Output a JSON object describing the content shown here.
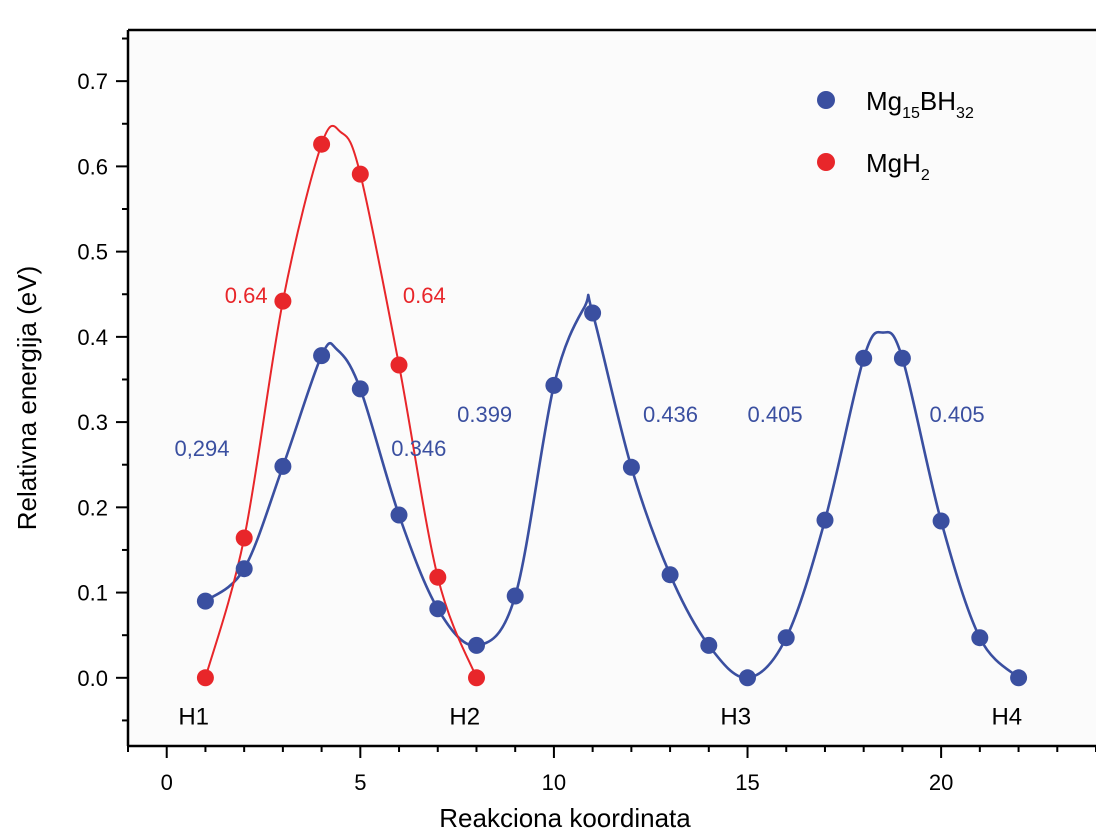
{
  "chart_data": {
    "type": "scatter",
    "xlabel": "Reakciona koordinata",
    "ylabel": "Relativna energija (eV)",
    "xlim": [
      -1,
      24
    ],
    "ylim": [
      -0.08,
      0.76
    ],
    "xticks": [
      {
        "value": 0,
        "label": "0"
      },
      {
        "value": 5,
        "label": "5"
      },
      {
        "value": 10,
        "label": "10"
      },
      {
        "value": 15,
        "label": "15"
      },
      {
        "value": 20,
        "label": "20"
      }
    ],
    "yticks": [
      {
        "value": 0.0,
        "label": "0.0"
      },
      {
        "value": 0.1,
        "label": "0.1"
      },
      {
        "value": 0.2,
        "label": "0.2"
      },
      {
        "value": 0.3,
        "label": "0.3"
      },
      {
        "value": 0.4,
        "label": "0.4"
      },
      {
        "value": 0.5,
        "label": "0.5"
      },
      {
        "value": 0.6,
        "label": "0.6"
      },
      {
        "value": 0.7,
        "label": "0.7"
      }
    ],
    "series": [
      {
        "name": "Mg15BH32",
        "color": "#3a4fa0",
        "x": [
          1,
          2,
          3,
          4,
          5,
          6,
          7,
          8,
          9,
          10,
          11,
          12,
          13,
          14,
          15,
          16,
          17,
          18,
          19,
          20,
          21,
          22
        ],
        "y": [
          0.09,
          0.128,
          0.248,
          0.378,
          0.339,
          0.191,
          0.081,
          0.038,
          0.096,
          0.343,
          0.428,
          0.247,
          0.121,
          0.038,
          0.0,
          0.047,
          0.185,
          0.375,
          0.375,
          0.184,
          0.047,
          0.0
        ],
        "curve_x": [
          1,
          2,
          3,
          4,
          4.4,
          5,
          6,
          7,
          8,
          9,
          10,
          10.8,
          11,
          12,
          13,
          14,
          15,
          16,
          17,
          18,
          18.5,
          19,
          20,
          21,
          22
        ],
        "curve_y": [
          0.09,
          0.128,
          0.248,
          0.378,
          0.385,
          0.339,
          0.191,
          0.081,
          0.038,
          0.096,
          0.343,
          0.436,
          0.428,
          0.247,
          0.121,
          0.038,
          0.0,
          0.047,
          0.185,
          0.375,
          0.405,
          0.375,
          0.184,
          0.047,
          0.0
        ]
      },
      {
        "name": "MgH2",
        "color": "#e8262a",
        "x": [
          1,
          2,
          3,
          4,
          5,
          6,
          7,
          8
        ],
        "y": [
          0.0,
          0.164,
          0.442,
          0.626,
          0.591,
          0.367,
          0.118,
          0.0
        ],
        "curve_x": [
          1,
          2,
          3,
          4,
          4.5,
          5,
          6,
          7,
          8
        ],
        "curve_y": [
          0.0,
          0.164,
          0.442,
          0.626,
          0.64,
          0.591,
          0.367,
          0.118,
          0.0
        ]
      }
    ],
    "legend": {
      "placement": "top-right",
      "entries": [
        {
          "base": "Mg",
          "sub1": "15",
          "mid": "BH",
          "sub2": "32",
          "color": "#3a4fa0"
        },
        {
          "base": "MgH",
          "sub1": "2",
          "mid": "",
          "sub2": "",
          "color": "#e8262a"
        }
      ]
    },
    "annotations": [
      {
        "text": "0.64",
        "x": 1.5,
        "y": 0.44,
        "color": "#e8262a"
      },
      {
        "text": "0.64",
        "x": 6.1,
        "y": 0.44,
        "color": "#e8262a"
      },
      {
        "text": "0,294",
        "x": 0.2,
        "y": 0.26,
        "color": "#3a4fa0"
      },
      {
        "text": "0.346",
        "x": 5.8,
        "y": 0.26,
        "color": "#3a4fa0"
      },
      {
        "text": "0.399",
        "x": 7.5,
        "y": 0.3,
        "color": "#3a4fa0"
      },
      {
        "text": "0.436",
        "x": 12.3,
        "y": 0.3,
        "color": "#3a4fa0"
      },
      {
        "text": "0.405",
        "x": 15.0,
        "y": 0.3,
        "color": "#3a4fa0"
      },
      {
        "text": "0.405",
        "x": 19.7,
        "y": 0.3,
        "color": "#3a4fa0"
      }
    ],
    "state_labels": [
      {
        "text": "H1",
        "x": 0.3,
        "y": -0.055
      },
      {
        "text": "H2",
        "x": 7.3,
        "y": -0.055
      },
      {
        "text": "H3",
        "x": 14.3,
        "y": -0.055
      },
      {
        "text": "H4",
        "x": 21.3,
        "y": -0.055
      }
    ]
  }
}
